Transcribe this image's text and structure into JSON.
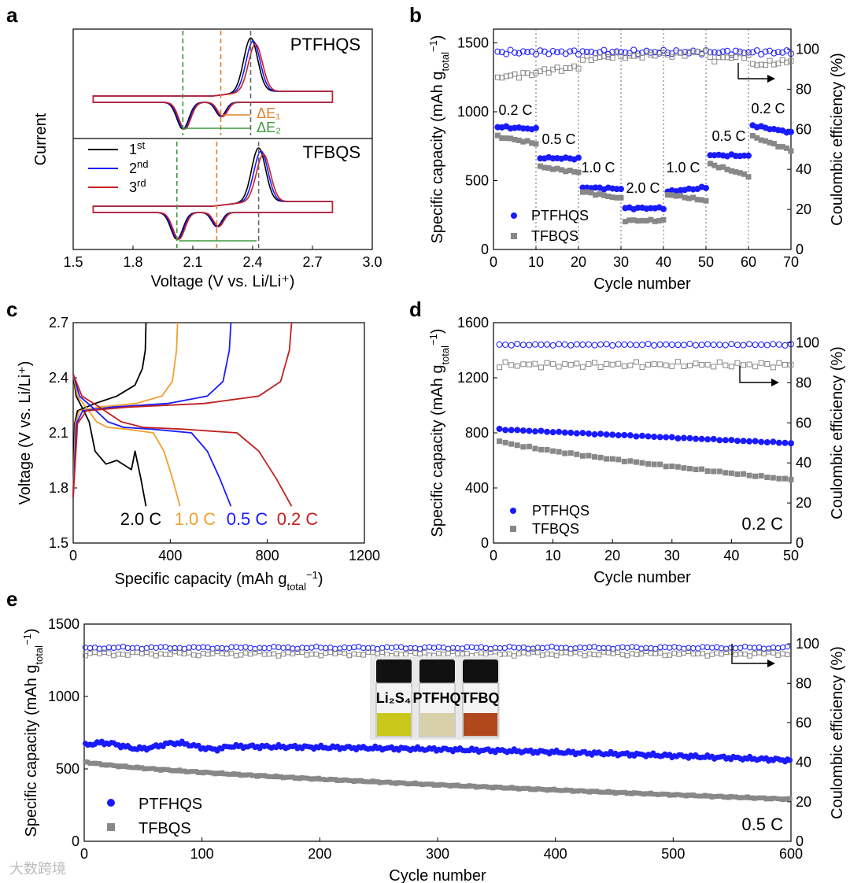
{
  "panels": {
    "a": "a",
    "b": "b",
    "c": "c",
    "d": "d",
    "e": "e"
  },
  "watermark": "大数跨境",
  "chart_data": [
    {
      "id": "a",
      "type": "line",
      "xlabel": "Voltage (V vs. Li/Li⁺)",
      "ylabel": "Current",
      "xlim": [
        1.5,
        3.0
      ],
      "xticks": [
        "1.5",
        "1.8",
        "2.1",
        "2.4",
        "2.7",
        "3.0"
      ],
      "subplots": [
        {
          "label": "PTFHQS",
          "annotations": [
            "ΔE₁",
            "ΔE₂"
          ],
          "reduction_peaks": [
            2.05,
            2.24
          ],
          "oxidation_peak": 2.39
        },
        {
          "label": "TFBQS",
          "reduction_peaks": [
            2.02,
            2.22
          ],
          "oxidation_peak": 2.43
        }
      ],
      "series": [
        {
          "name": "1st",
          "sup": "st",
          "base": "1",
          "color": "#000000"
        },
        {
          "name": "2nd",
          "sup": "nd",
          "base": "2",
          "color": "#1a1aff"
        },
        {
          "name": "3rd",
          "sup": "rd",
          "base": "3",
          "color": "#cc2222"
        }
      ]
    },
    {
      "id": "b",
      "type": "scatter",
      "xlabel": "Cycle number",
      "ylabel": "Specific capacity (mAh g",
      "ylabel_sub": "total",
      "ylabel_sup": "−1",
      "y2label": "Coulombic efficiency (%)",
      "xlim": [
        0,
        70
      ],
      "ylim": [
        0,
        1600
      ],
      "y2lim": [
        0,
        110
      ],
      "xticks": [
        "0",
        "10",
        "20",
        "30",
        "40",
        "50",
        "60",
        "70"
      ],
      "yticks": [
        "0",
        "500",
        "1000",
        "1500"
      ],
      "y2ticks": [
        "0",
        "20",
        "40",
        "60",
        "80",
        "100"
      ],
      "rate_labels": [
        "0.2 C",
        "0.5 C",
        "1.0 C",
        "2.0 C",
        "1.0 C",
        "0.5 C",
        "0.2 C"
      ],
      "series": [
        {
          "name": "PTFHQS",
          "color": "#1a1aff",
          "segments": [
            [
              1,
              10,
              890,
              875
            ],
            [
              11,
              20,
              665,
              660
            ],
            [
              21,
              30,
              450,
              440
            ],
            [
              31,
              40,
              300,
              300
            ],
            [
              41,
              50,
              420,
              450
            ],
            [
              51,
              60,
              685,
              680
            ],
            [
              61,
              70,
              900,
              850
            ]
          ],
          "ce": 98.5
        },
        {
          "name": "TFBQS",
          "color": "#888888",
          "segments": [
            [
              1,
              10,
              820,
              770
            ],
            [
              11,
              20,
              600,
              560
            ],
            [
              21,
              30,
              420,
              370
            ],
            [
              31,
              40,
              210,
              210
            ],
            [
              41,
              50,
              400,
              355
            ],
            [
              51,
              60,
              620,
              535
            ],
            [
              61,
              70,
              820,
              720
            ]
          ],
          "ce": [
            86,
            89,
            95,
            96,
            97,
            95,
            92
          ]
        }
      ]
    },
    {
      "id": "c",
      "type": "line",
      "xlabel": "Specific capacity (mAh g",
      "xlabel_sub": "total",
      "xlabel_sup": "−1",
      "ylabel": "Voltage (V vs. Li/Li⁺)",
      "xlim": [
        0,
        1200
      ],
      "ylim": [
        1.5,
        2.7
      ],
      "xticks": [
        "0",
        "400",
        "800",
        "1200"
      ],
      "yticks": [
        "1.5",
        "1.8",
        "2.1",
        "2.4",
        "2.7"
      ],
      "series": [
        {
          "name": "2.0 C",
          "color": "#000000",
          "discharge_end": 300,
          "charge_end": 300
        },
        {
          "name": "1.0 C",
          "color": "#f0a030",
          "discharge_end": 440,
          "charge_end": 430
        },
        {
          "name": "0.5 C",
          "color": "#1a1aff",
          "discharge_end": 650,
          "charge_end": 650
        },
        {
          "name": "0.2 C",
          "color": "#c02020",
          "discharge_end": 900,
          "charge_end": 900
        }
      ]
    },
    {
      "id": "d",
      "type": "scatter",
      "xlabel": "Cycle number",
      "ylabel": "Specific capacity (mAh g",
      "ylabel_sub": "total",
      "ylabel_sup": "−1",
      "y2label": "Coulombic efficiency (%)",
      "xlim": [
        0,
        50
      ],
      "ylim": [
        0,
        1600
      ],
      "y2lim": [
        0,
        110
      ],
      "xticks": [
        "0",
        "10",
        "20",
        "30",
        "40",
        "50"
      ],
      "yticks": [
        "0",
        "400",
        "800",
        "1200",
        "1600"
      ],
      "y2ticks": [
        "0",
        "20",
        "40",
        "60",
        "80",
        "100"
      ],
      "rate": "0.2 C",
      "series": [
        {
          "name": "PTFHQS",
          "color": "#1a1aff",
          "start": 825,
          "end": 725,
          "ce": 99
        },
        {
          "name": "TFBQS",
          "color": "#888888",
          "start": 740,
          "end": 460,
          "ce": 89
        }
      ]
    },
    {
      "id": "e",
      "type": "scatter",
      "xlabel": "Cycle number",
      "ylabel": "Specific capacity (mAh g",
      "ylabel_sub": "total",
      "ylabel_sup": "−1",
      "y2label": "Coulombic efficiency (%)",
      "xlim": [
        0,
        600
      ],
      "ylim": [
        0,
        1500
      ],
      "y2lim": [
        0,
        110
      ],
      "xticks": [
        "0",
        "100",
        "200",
        "300",
        "400",
        "500",
        "600"
      ],
      "yticks": [
        "0",
        "500",
        "1000",
        "1500"
      ],
      "y2ticks": [
        "0",
        "20",
        "40",
        "60",
        "80",
        "100"
      ],
      "rate": "0.5 C",
      "inset_labels": [
        "Li₂S₄",
        "PTFHQ",
        "TFBQ"
      ],
      "inset_colors": [
        "#c9c81a",
        "#d8d0a8",
        "#b0481c"
      ],
      "series": [
        {
          "name": "PTFHQS",
          "color": "#1a1aff",
          "start": 640,
          "end": 560,
          "ce": 98
        },
        {
          "name": "TFBQS",
          "color": "#888888",
          "start": 550,
          "end": 290,
          "ce": 95
        }
      ]
    }
  ]
}
